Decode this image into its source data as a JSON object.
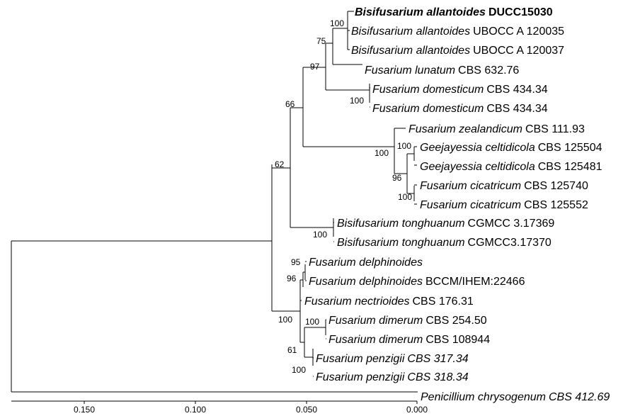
{
  "taxa": [
    {
      "italic": "Bisifusarium allantoides",
      "strain": "DUCC15030",
      "italic_strain": false,
      "bold": true
    },
    {
      "italic": "Bisifusarium allantoides",
      "strain": "UBOCC A 120035",
      "italic_strain": false,
      "bold": false
    },
    {
      "italic": "Bisifusarium allantoides",
      "strain": "UBOCC A 120037",
      "italic_strain": false,
      "bold": false
    },
    {
      "italic": "Fusarium lunatum",
      "strain": "CBS 632.76",
      "italic_strain": false,
      "bold": false
    },
    {
      "italic": "Fusarium domesticum",
      "strain": "CBS 434.34",
      "italic_strain": false,
      "bold": false
    },
    {
      "italic": "Fusarium domesticum",
      "strain": "CBS 434.34",
      "italic_strain": false,
      "bold": false
    },
    {
      "italic": "Fusarium zealandicum",
      "strain": "CBS 111.93",
      "italic_strain": false,
      "bold": false
    },
    {
      "italic": "Geejayessia celtidicola",
      "strain": "CBS 125504",
      "italic_strain": false,
      "bold": false
    },
    {
      "italic": "Geejayessia celtidicola",
      "strain": "CBS 125481",
      "italic_strain": false,
      "bold": false
    },
    {
      "italic": "Fusarium cicatricum",
      "strain": "CBS 125740",
      "italic_strain": false,
      "bold": false
    },
    {
      "italic": "Fusarium cicatricum",
      "strain": "CBS 125552",
      "italic_strain": false,
      "bold": false
    },
    {
      "italic": "Bisifusarium tonghuanum",
      "strain": "CGMCC 3.17369",
      "italic_strain": false,
      "bold": false
    },
    {
      "italic": "Bisifusarium tonghuanum",
      "strain": "CGMCC3.17370",
      "italic_strain": false,
      "bold": false
    },
    {
      "italic": "Fusarium delphinoides",
      "strain": "",
      "italic_strain": false,
      "bold": false
    },
    {
      "italic": "Fusarium delphinoides",
      "strain": "BCCM/IHEM:22466",
      "italic_strain": false,
      "bold": false
    },
    {
      "italic": "Fusarium nectrioides",
      "strain": "CBS 176.31",
      "italic_strain": false,
      "bold": false
    },
    {
      "italic": "Fusarium dimerum",
      "strain": "CBS 254.50",
      "italic_strain": false,
      "bold": false
    },
    {
      "italic": "Fusarium dimerum",
      "strain": "CBS 108944",
      "italic_strain": false,
      "bold": false
    },
    {
      "italic": "Fusarium penzigii",
      "strain": "CBS 317.34",
      "italic_strain": true,
      "bold": false
    },
    {
      "italic": "Fusarium penzigii",
      "strain": "CBS 318.34",
      "italic_strain": true,
      "bold": false
    },
    {
      "italic": "Penicillium chrysogenum",
      "strain": "CBS 412.69",
      "italic_strain": true,
      "bold": false
    }
  ],
  "bootstrap": [
    "100",
    "75",
    "97",
    "100",
    "66",
    "100",
    "100",
    "96",
    "100",
    "62",
    "100",
    "95",
    "96",
    "100",
    "100",
    "61",
    "100"
  ],
  "scale_ticks": [
    "0.150",
    "0.100",
    "0.050",
    "0.000"
  ]
}
